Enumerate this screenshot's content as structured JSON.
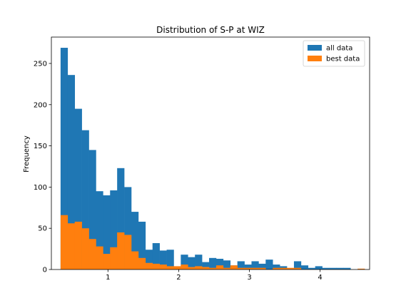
{
  "chart_data": {
    "type": "bar",
    "subtype": "overlapping-histogram",
    "title": "Distribution of S-P at WIZ",
    "xlabel": "",
    "ylabel": "Frequency",
    "xlim": [
      0.2,
      4.7
    ],
    "ylim": [
      0,
      282
    ],
    "xticks": [
      1,
      2,
      3,
      4
    ],
    "yticks": [
      0,
      50,
      100,
      150,
      200,
      250
    ],
    "legend_position": "top-right",
    "grid": false,
    "bins": {
      "start": 0.33,
      "width": 0.1
    },
    "series": [
      {
        "name": "all data",
        "color": "#1f77b4",
        "bin_start": 0.33,
        "bin_width": 0.1,
        "values": [
          269,
          236,
          195,
          169,
          145,
          95,
          90,
          96,
          123,
          100,
          70,
          58,
          24,
          32,
          23,
          24,
          0,
          18,
          15,
          18,
          9,
          14,
          13,
          11,
          5,
          10,
          6,
          10,
          7,
          12,
          6,
          4,
          0,
          10,
          5,
          2,
          4,
          2,
          2,
          2,
          2
        ]
      },
      {
        "name": "best data",
        "color": "#ff7f0e",
        "bin_start": 0.33,
        "bin_width": 0.1,
        "values": [
          66,
          56,
          58,
          50,
          37,
          28,
          19,
          27,
          45,
          42,
          22,
          14,
          8,
          7,
          6,
          4,
          4,
          6,
          3,
          4,
          3,
          2,
          5,
          2,
          5,
          2,
          2,
          2,
          2,
          0,
          2,
          2,
          2,
          2,
          0,
          0,
          0,
          0,
          0,
          0,
          0,
          0,
          1
        ]
      }
    ]
  }
}
